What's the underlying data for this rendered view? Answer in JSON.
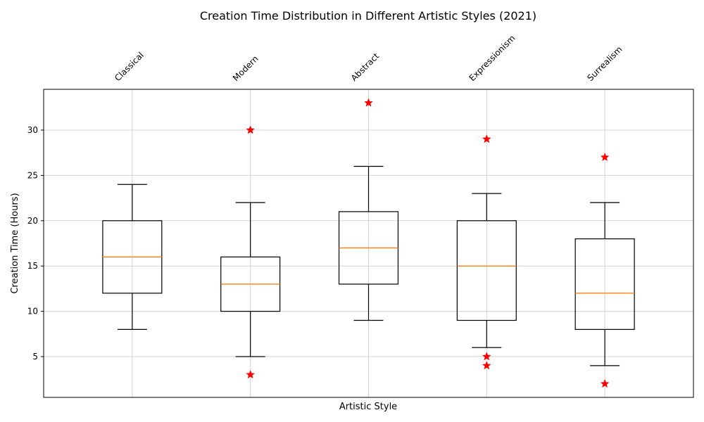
{
  "chart_data": {
    "type": "box",
    "title": "Creation Time Distribution in Different Artistic Styles (2021)",
    "xlabel": "Artistic Style",
    "ylabel": "Creation Time (Hours)",
    "ylim": [
      0.5,
      34.5
    ],
    "yticks": [
      5,
      10,
      15,
      20,
      25,
      30
    ],
    "grid": true,
    "categories": [
      "Classical",
      "Modern",
      "Abstract",
      "Expressionism",
      "Surrealism"
    ],
    "boxes": [
      {
        "category": "Classical",
        "whisker_low": 8,
        "q1": 12,
        "median": 16,
        "q3": 20,
        "whisker_high": 24,
        "outliers": []
      },
      {
        "category": "Modern",
        "whisker_low": 5,
        "q1": 10,
        "median": 13,
        "q3": 16,
        "whisker_high": 22,
        "outliers": [
          3,
          30
        ]
      },
      {
        "category": "Abstract",
        "whisker_low": 9,
        "q1": 13,
        "median": 17,
        "q3": 21,
        "whisker_high": 26,
        "outliers": [
          33
        ]
      },
      {
        "category": "Expressionism",
        "whisker_low": 6,
        "q1": 9,
        "median": 15,
        "q3": 20,
        "whisker_high": 23,
        "outliers": [
          4,
          5,
          29
        ]
      },
      {
        "category": "Surrealism",
        "whisker_low": 4,
        "q1": 8,
        "median": 12,
        "q3": 18,
        "whisker_high": 22,
        "outliers": [
          2,
          27
        ]
      }
    ],
    "colors": {
      "box": "#000000",
      "median": "#ff7f0e",
      "outlier": "#ff0000",
      "grid": "#d3d3d3"
    }
  }
}
